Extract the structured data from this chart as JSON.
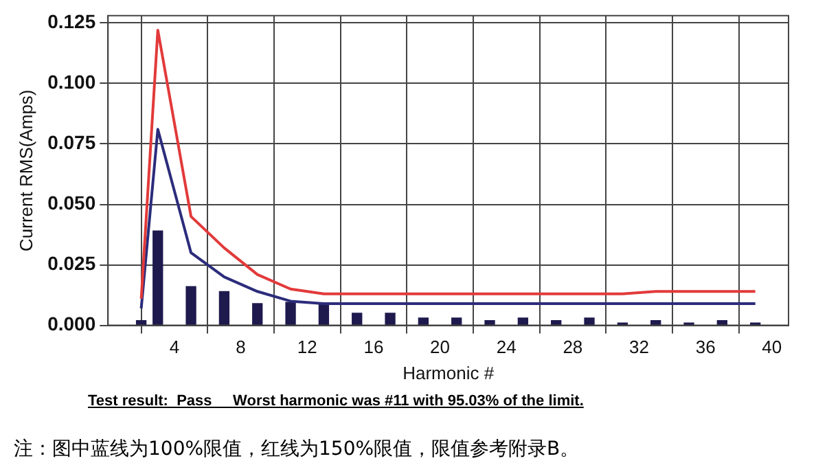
{
  "chart_data": {
    "type": "bar",
    "xlabel": "Harmonic #",
    "ylabel": "Current RMS(Amps)",
    "xlim": [
      0,
      41
    ],
    "xticks": [
      4,
      8,
      12,
      16,
      20,
      24,
      28,
      32,
      36,
      40
    ],
    "ylim": [
      0,
      0.128
    ],
    "yticks": [
      {
        "value": 0,
        "label": "0.000"
      },
      0.025,
      {
        "value": 0.05,
        "label": "0.050"
      },
      0.075,
      {
        "value": 0.1,
        "label": "0.100"
      },
      0.125
    ],
    "grid": true,
    "legend": false,
    "series": [
      {
        "color": "#1e1a4e",
        "x": [
          2,
          3,
          5,
          7,
          9,
          11,
          13,
          15,
          17,
          19,
          21,
          23,
          25,
          27,
          29,
          31,
          33,
          35,
          37,
          39
        ],
        "values": [
          0.002,
          0.039,
          0.016,
          0.014,
          0.009,
          0.0095,
          0.009,
          0.005,
          0.005,
          0.003,
          0.003,
          0.002,
          0.003,
          0.002,
          0.003,
          0.001,
          0.002,
          0.001,
          0.002,
          0.001
        ]
      },
      {
        "type": "line",
        "color": "#e23a3a",
        "x": [
          2,
          3,
          5,
          7,
          9,
          11,
          13,
          15,
          17,
          19,
          21,
          23,
          25,
          27,
          29,
          31,
          33,
          35,
          37,
          39
        ],
        "values": [
          0.011,
          0.122,
          0.045,
          0.032,
          0.021,
          0.015,
          0.013,
          0.013,
          0.013,
          0.013,
          0.013,
          0.013,
          0.013,
          0.013,
          0.013,
          0.013,
          0.014,
          0.014,
          0.014,
          0.014
        ]
      },
      {
        "type": "line",
        "color": "#2c2c7c",
        "x": [
          2,
          3,
          5,
          7,
          9,
          11,
          13,
          15,
          17,
          19,
          21,
          23,
          25,
          27,
          29,
          31,
          33,
          35,
          37,
          39
        ],
        "values": [
          0.007,
          0.081,
          0.03,
          0.02,
          0.014,
          0.01,
          0.009,
          0.009,
          0.009,
          0.009,
          0.009,
          0.009,
          0.009,
          0.009,
          0.009,
          0.009,
          0.009,
          0.009,
          0.009,
          0.009
        ]
      }
    ],
    "annotations": [
      "Test result:  Pass     Worst harmonic was #11 with 95.03% of the limit.",
      "注：图中蓝线为100%限值，红线为150%限值，限值参考附录B。"
    ]
  }
}
